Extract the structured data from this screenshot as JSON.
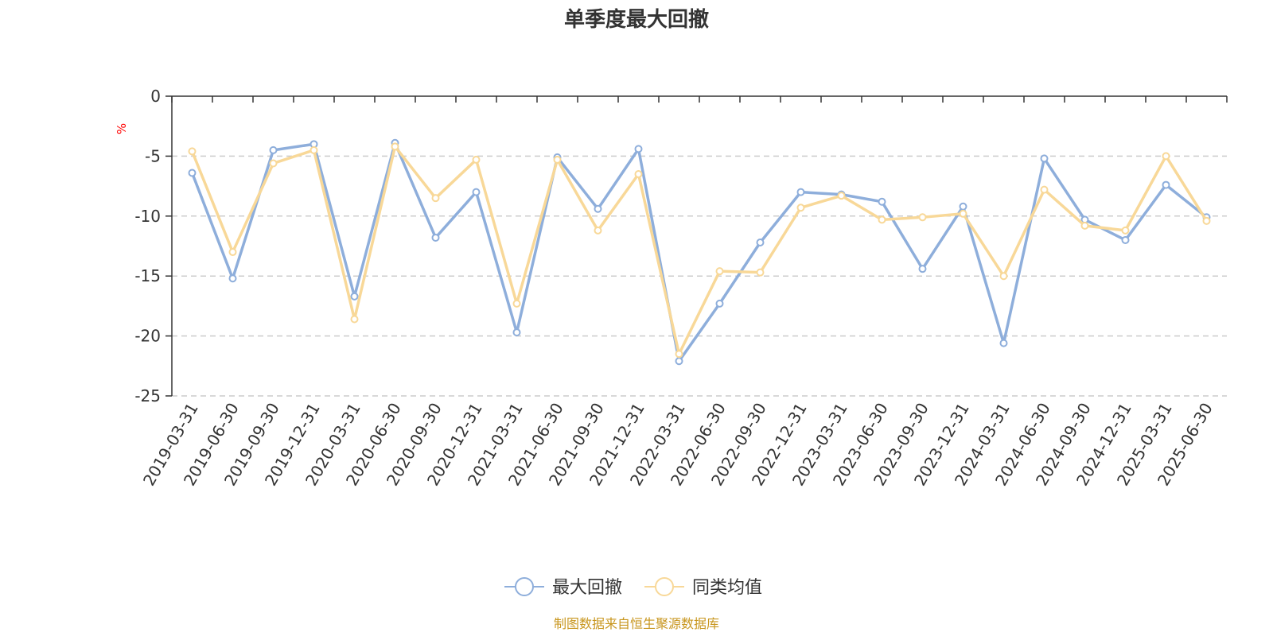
{
  "chart_data": {
    "type": "line",
    "title": "单季度最大回撤",
    "ylabel": "%",
    "ylim": [
      -25,
      0
    ],
    "yticks": [
      0,
      -5,
      -10,
      -15,
      -20,
      -25
    ],
    "grid": true,
    "legend_position": "bottom",
    "categories": [
      "2019-03-31",
      "2019-06-30",
      "2019-09-30",
      "2019-12-31",
      "2020-03-31",
      "2020-06-30",
      "2020-09-30",
      "2020-12-31",
      "2021-03-31",
      "2021-06-30",
      "2021-09-30",
      "2021-12-31",
      "2022-03-31",
      "2022-06-30",
      "2022-09-30",
      "2022-12-31",
      "2023-03-31",
      "2023-06-30",
      "2023-09-30",
      "2023-12-31",
      "2024-03-31",
      "2024-06-30",
      "2024-09-30",
      "2024-12-31",
      "2025-03-31",
      "2025-06-30"
    ],
    "series": [
      {
        "name": "最大回撤",
        "color": "#8eaedb",
        "values": [
          -6.4,
          -15.2,
          -4.5,
          -4.0,
          -16.7,
          -3.9,
          -11.8,
          -8.0,
          -19.7,
          -5.1,
          -9.4,
          -4.4,
          -22.1,
          -17.3,
          -12.2,
          -8.0,
          -8.2,
          -8.8,
          -14.4,
          -9.2,
          -20.6,
          -5.2,
          -10.3,
          -12.0,
          -7.4,
          -10.1
        ]
      },
      {
        "name": "同类均值",
        "color": "#f8d898",
        "values": [
          -4.6,
          -13.0,
          -5.6,
          -4.5,
          -18.6,
          -4.2,
          -8.5,
          -5.3,
          -17.3,
          -5.3,
          -11.2,
          -6.5,
          -21.5,
          -14.6,
          -14.7,
          -9.3,
          -8.3,
          -10.3,
          -10.1,
          -9.8,
          -15.0,
          -7.8,
          -10.8,
          -11.2,
          -5.0,
          -10.4
        ]
      }
    ],
    "source": "制图数据来自恒生聚源数据库",
    "source_color": "#c8961e",
    "unit_color": "#ff0000"
  }
}
